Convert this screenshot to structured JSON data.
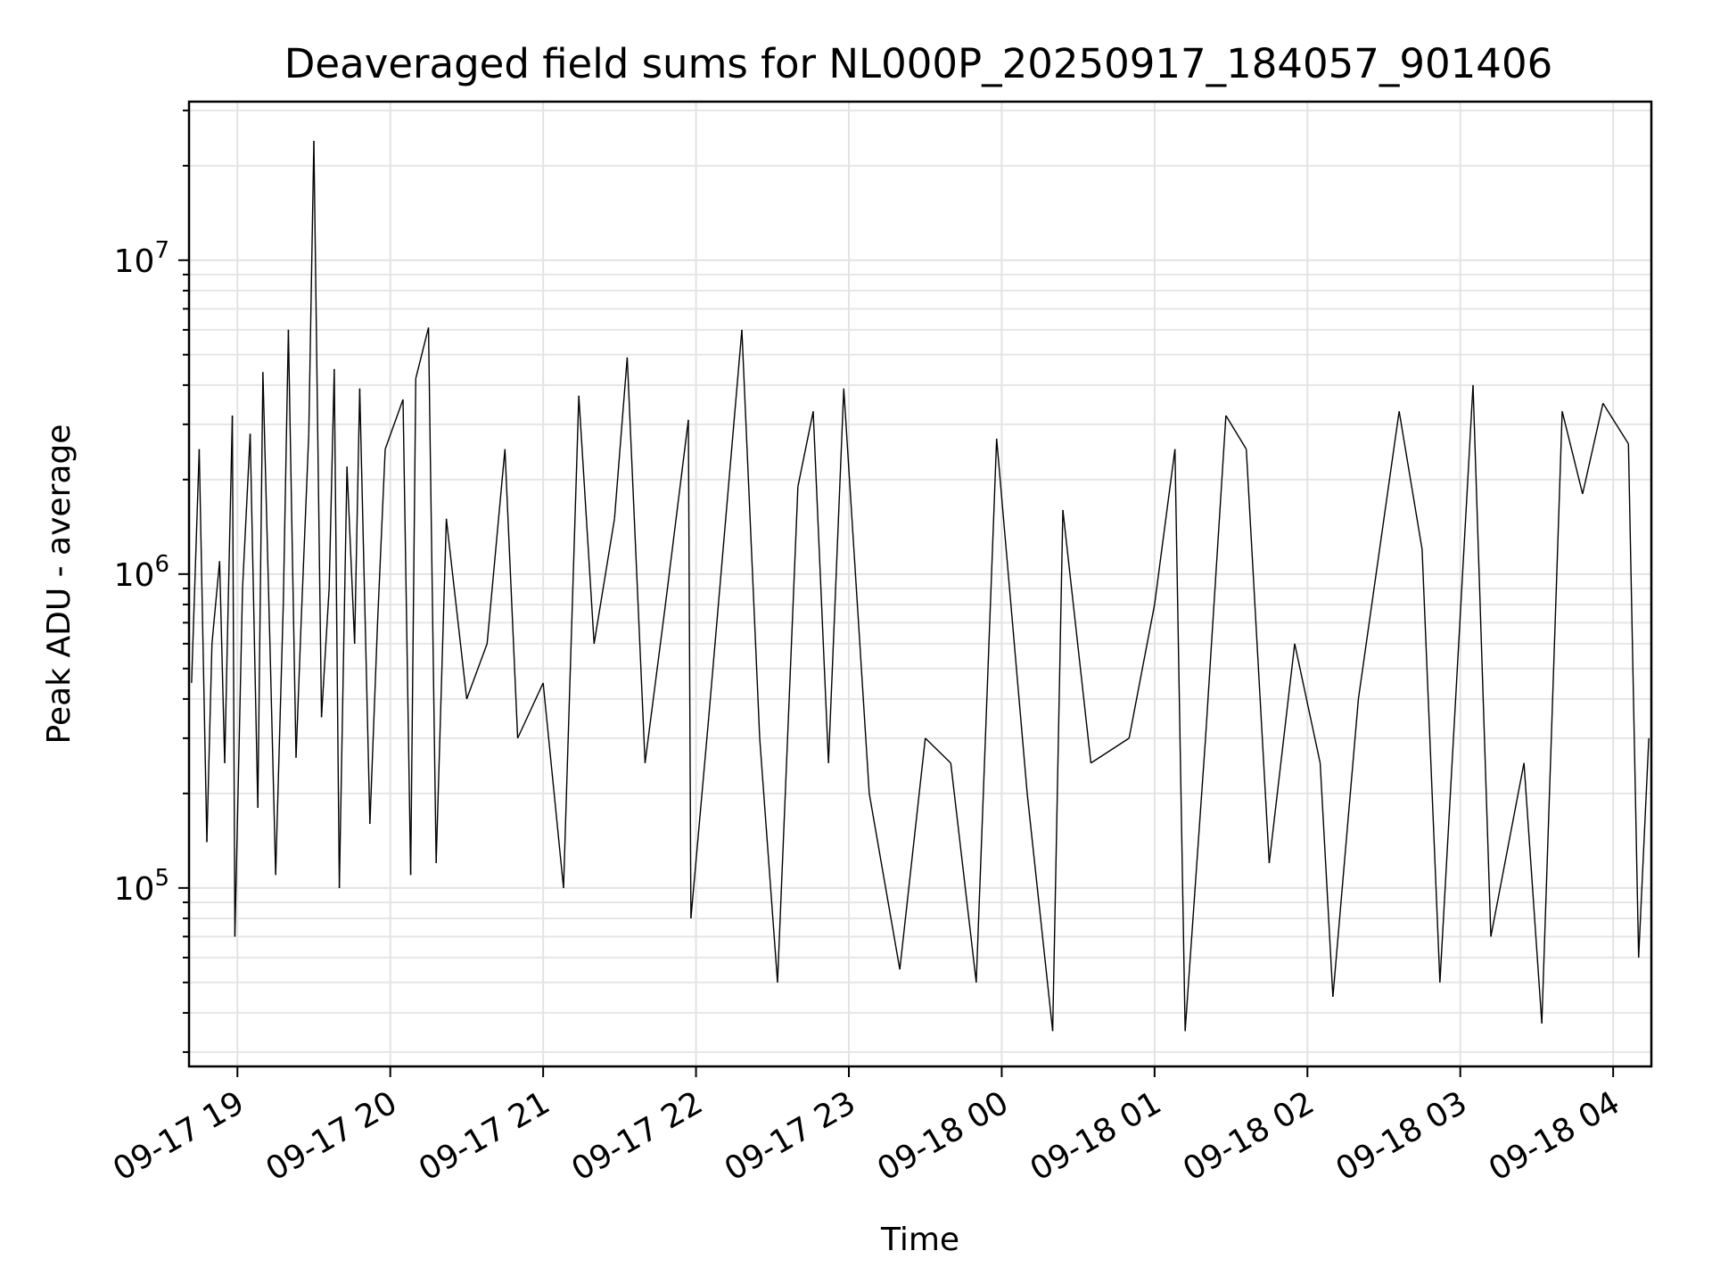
{
  "chart_data": {
    "type": "line",
    "title": "Deaveraged field sums for NL000P_20250917_184057_901406",
    "xlabel": "Time",
    "ylabel": "Peak ADU - average",
    "yscale": "log",
    "ylim": [
      27000,
      32000000
    ],
    "xlim": [
      "2025-09-17 18:41",
      "2025-09-18 04:15"
    ],
    "grid": true,
    "line_color": "#000000",
    "x_ticks": [
      "09-17 19",
      "09-17 20",
      "09-17 21",
      "09-17 22",
      "09-17 23",
      "09-18 00",
      "09-18 01",
      "09-18 02",
      "09-18 03",
      "09-18 04"
    ],
    "x_tick_values": [
      "2025-09-17 19:00",
      "2025-09-17 20:00",
      "2025-09-17 21:00",
      "2025-09-17 22:00",
      "2025-09-17 23:00",
      "2025-09-18 00:00",
      "2025-09-18 01:00",
      "2025-09-18 02:00",
      "2025-09-18 03:00",
      "2025-09-18 04:00"
    ],
    "y_ticks": [
      {
        "value": 100000,
        "base": "10",
        "exp": "5"
      },
      {
        "value": 1000000,
        "base": "10",
        "exp": "6"
      },
      {
        "value": 10000000,
        "base": "10",
        "exp": "7"
      }
    ],
    "series": [
      {
        "points": [
          [
            "2025-09-17 18:42",
            450000
          ],
          [
            "2025-09-17 18:45",
            2500000
          ],
          [
            "2025-09-17 18:48",
            140000
          ],
          [
            "2025-09-17 18:50",
            600000
          ],
          [
            "2025-09-17 18:53",
            1100000
          ],
          [
            "2025-09-17 18:55",
            250000
          ],
          [
            "2025-09-17 18:58",
            3200000
          ],
          [
            "2025-09-17 18:59",
            70000
          ],
          [
            "2025-09-17 19:02",
            900000
          ],
          [
            "2025-09-17 19:05",
            2800000
          ],
          [
            "2025-09-17 19:08",
            180000
          ],
          [
            "2025-09-17 19:10",
            4400000
          ],
          [
            "2025-09-17 19:13",
            500000
          ],
          [
            "2025-09-17 19:15",
            110000
          ],
          [
            "2025-09-17 19:18",
            800000
          ],
          [
            "2025-09-17 19:20",
            6000000
          ],
          [
            "2025-09-17 19:23",
            260000
          ],
          [
            "2025-09-17 19:25",
            700000
          ],
          [
            "2025-09-17 19:28",
            2800000
          ],
          [
            "2025-09-17 19:30",
            24000000
          ],
          [
            "2025-09-17 19:33",
            350000
          ],
          [
            "2025-09-17 19:36",
            900000
          ],
          [
            "2025-09-17 19:38",
            4500000
          ],
          [
            "2025-09-17 19:40",
            100000
          ],
          [
            "2025-09-17 19:43",
            2200000
          ],
          [
            "2025-09-17 19:46",
            600000
          ],
          [
            "2025-09-17 19:48",
            3900000
          ],
          [
            "2025-09-17 19:52",
            160000
          ],
          [
            "2025-09-17 19:55",
            700000
          ],
          [
            "2025-09-17 19:58",
            2500000
          ],
          [
            "2025-09-17 20:05",
            3600000
          ],
          [
            "2025-09-17 20:08",
            110000
          ],
          [
            "2025-09-17 20:10",
            4200000
          ],
          [
            "2025-09-17 20:15",
            6100000
          ],
          [
            "2025-09-17 20:18",
            120000
          ],
          [
            "2025-09-17 20:22",
            1500000
          ],
          [
            "2025-09-17 20:30",
            400000
          ],
          [
            "2025-09-17 20:38",
            600000
          ],
          [
            "2025-09-17 20:45",
            2500000
          ],
          [
            "2025-09-17 20:50",
            300000
          ],
          [
            "2025-09-17 21:00",
            450000
          ],
          [
            "2025-09-17 21:08",
            100000
          ],
          [
            "2025-09-17 21:14",
            3700000
          ],
          [
            "2025-09-17 21:20",
            600000
          ],
          [
            "2025-09-17 21:28",
            1500000
          ],
          [
            "2025-09-17 21:33",
            4900000
          ],
          [
            "2025-09-17 21:40",
            250000
          ],
          [
            "2025-09-17 21:48",
            800000
          ],
          [
            "2025-09-17 21:57",
            3100000
          ],
          [
            "2025-09-17 21:58",
            80000
          ],
          [
            "2025-09-17 22:05",
            350000
          ],
          [
            "2025-09-17 22:18",
            6000000
          ],
          [
            "2025-09-17 22:25",
            300000
          ],
          [
            "2025-09-17 22:32",
            50000
          ],
          [
            "2025-09-17 22:40",
            1900000
          ],
          [
            "2025-09-17 22:46",
            3300000
          ],
          [
            "2025-09-17 22:52",
            250000
          ],
          [
            "2025-09-17 22:58",
            3900000
          ],
          [
            "2025-09-17 23:08",
            200000
          ],
          [
            "2025-09-17 23:20",
            55000
          ],
          [
            "2025-09-17 23:30",
            300000
          ],
          [
            "2025-09-17 23:40",
            250000
          ],
          [
            "2025-09-17 23:50",
            50000
          ],
          [
            "2025-09-17 23:58",
            2700000
          ],
          [
            "2025-09-18 00:10",
            200000
          ],
          [
            "2025-09-18 00:20",
            35000
          ],
          [
            "2025-09-18 00:24",
            1600000
          ],
          [
            "2025-09-18 00:35",
            250000
          ],
          [
            "2025-09-18 00:50",
            300000
          ],
          [
            "2025-09-18 01:00",
            800000
          ],
          [
            "2025-09-18 01:08",
            2500000
          ],
          [
            "2025-09-18 01:12",
            35000
          ],
          [
            "2025-09-18 01:20",
            300000
          ],
          [
            "2025-09-18 01:28",
            3200000
          ],
          [
            "2025-09-18 01:36",
            2500000
          ],
          [
            "2025-09-18 01:45",
            120000
          ],
          [
            "2025-09-18 01:55",
            600000
          ],
          [
            "2025-09-18 02:05",
            250000
          ],
          [
            "2025-09-18 02:10",
            45000
          ],
          [
            "2025-09-18 02:20",
            400000
          ],
          [
            "2025-09-18 02:36",
            3300000
          ],
          [
            "2025-09-18 02:45",
            1200000
          ],
          [
            "2025-09-18 02:52",
            50000
          ],
          [
            "2025-09-18 03:05",
            4000000
          ],
          [
            "2025-09-18 03:12",
            70000
          ],
          [
            "2025-09-18 03:25",
            250000
          ],
          [
            "2025-09-18 03:32",
            37000
          ],
          [
            "2025-09-18 03:40",
            3300000
          ],
          [
            "2025-09-18 03:48",
            1800000
          ],
          [
            "2025-09-18 03:56",
            3500000
          ],
          [
            "2025-09-18 04:06",
            2600000
          ],
          [
            "2025-09-18 04:10",
            60000
          ],
          [
            "2025-09-18 04:14",
            300000
          ]
        ]
      }
    ]
  }
}
